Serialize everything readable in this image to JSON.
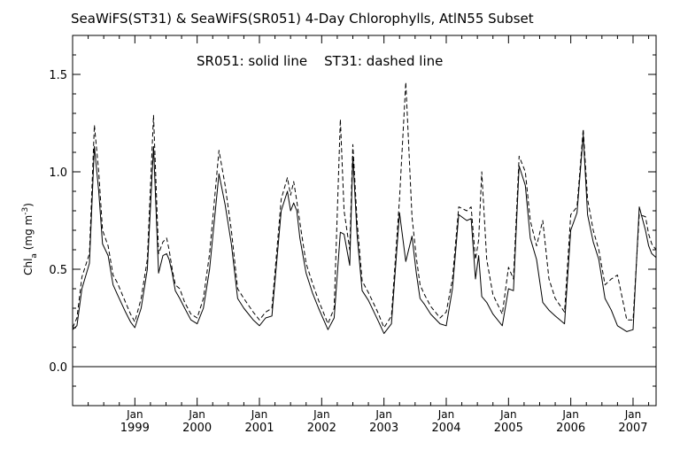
{
  "chart_data": {
    "type": "line",
    "title": "SeaWiFS(ST31) & SeaWiFS(SR051) 4-Day Chlorophylls, AtlN55 Subset",
    "annotation": "SR051: solid line    ST31: dashed line",
    "ylabel_main": "Chl",
    "ylabel_sub": "a",
    "ylabel_unit_pre": " (mg m",
    "ylabel_unit_sup": "-3",
    "ylabel_unit_post": ")",
    "xlim": [
      1998.0,
      2007.37
    ],
    "ylim": [
      -0.2,
      1.7
    ],
    "y_ticks": [
      0.0,
      0.5,
      1.0,
      1.5
    ],
    "y_tick_labels": [
      "0.0",
      "0.5",
      "1.0",
      "1.5"
    ],
    "reference_line": 0.0,
    "x_ticks": [
      {
        "value": 1999.0,
        "month": "Jan",
        "year": "1999"
      },
      {
        "value": 2000.0,
        "month": "Jan",
        "year": "2000"
      },
      {
        "value": 2001.0,
        "month": "Jan",
        "year": "2001"
      },
      {
        "value": 2002.0,
        "month": "Jan",
        "year": "2002"
      },
      {
        "value": 2003.0,
        "month": "Jan",
        "year": "2003"
      },
      {
        "value": 2004.0,
        "month": "Jan",
        "year": "2004"
      },
      {
        "value": 2005.0,
        "month": "Jan",
        "year": "2005"
      },
      {
        "value": 2006.0,
        "month": "Jan",
        "year": "2006"
      },
      {
        "value": 2007.0,
        "month": "Jan",
        "year": "2007"
      }
    ],
    "series": [
      {
        "name": "SR051",
        "style": "solid",
        "x": [
          1998.0,
          1998.07,
          1998.15,
          1998.27,
          1998.35,
          1998.42,
          1998.48,
          1998.57,
          1998.65,
          1998.72,
          1998.85,
          1998.93,
          1999.0,
          1999.1,
          1999.2,
          1999.3,
          1999.38,
          1999.45,
          1999.51,
          1999.55,
          1999.6,
          1999.65,
          1999.72,
          1999.8,
          1999.9,
          2000.0,
          2000.1,
          2000.2,
          2000.35,
          2000.45,
          2000.55,
          2000.65,
          2000.75,
          2000.9,
          2001.0,
          2001.1,
          2001.2,
          2001.35,
          2001.45,
          2001.5,
          2001.55,
          2001.6,
          2001.65,
          2001.75,
          2001.85,
          2001.95,
          2002.1,
          2002.2,
          2002.3,
          2002.36,
          2002.45,
          2002.5,
          2002.57,
          2002.65,
          2002.75,
          2002.9,
          2003.0,
          2003.12,
          2003.25,
          2003.35,
          2003.45,
          2003.52,
          2003.58,
          2003.65,
          2003.75,
          2003.9,
          2004.0,
          2004.1,
          2004.2,
          2004.33,
          2004.4,
          2004.47,
          2004.52,
          2004.57,
          2004.65,
          2004.75,
          2004.9,
          2005.0,
          2005.08,
          2005.17,
          2005.27,
          2005.35,
          2005.45,
          2005.55,
          2005.65,
          2005.75,
          2005.9,
          2006.0,
          2006.1,
          2006.2,
          2006.27,
          2006.36,
          2006.45,
          2006.55,
          2006.65,
          2006.75,
          2006.9,
          2007.0,
          2007.1,
          2007.2,
          2007.25,
          2007.3,
          2007.37
        ],
        "y": [
          0.19,
          0.21,
          0.4,
          0.53,
          1.13,
          0.9,
          0.63,
          0.57,
          0.42,
          0.37,
          0.28,
          0.23,
          0.2,
          0.3,
          0.5,
          1.13,
          0.48,
          0.57,
          0.58,
          0.55,
          0.48,
          0.39,
          0.35,
          0.3,
          0.24,
          0.22,
          0.3,
          0.5,
          0.99,
          0.83,
          0.63,
          0.35,
          0.3,
          0.24,
          0.21,
          0.25,
          0.26,
          0.8,
          0.9,
          0.8,
          0.84,
          0.8,
          0.66,
          0.48,
          0.38,
          0.3,
          0.19,
          0.25,
          0.69,
          0.68,
          0.52,
          1.08,
          0.67,
          0.39,
          0.34,
          0.24,
          0.17,
          0.22,
          0.79,
          0.54,
          0.67,
          0.48,
          0.35,
          0.32,
          0.27,
          0.22,
          0.21,
          0.4,
          0.78,
          0.75,
          0.76,
          0.45,
          0.57,
          0.36,
          0.33,
          0.27,
          0.21,
          0.4,
          0.39,
          1.03,
          0.93,
          0.66,
          0.55,
          0.33,
          0.29,
          0.26,
          0.22,
          0.7,
          0.79,
          1.19,
          0.78,
          0.64,
          0.55,
          0.35,
          0.29,
          0.21,
          0.18,
          0.19,
          0.82,
          0.7,
          0.62,
          0.58,
          0.56
        ]
      },
      {
        "name": "ST31",
        "style": "dashed",
        "x": [
          1998.0,
          1998.07,
          1998.15,
          1998.27,
          1998.35,
          1998.42,
          1998.48,
          1998.57,
          1998.65,
          1998.72,
          1998.85,
          1998.93,
          1999.0,
          1999.1,
          1999.2,
          1999.3,
          1999.38,
          1999.45,
          1999.51,
          1999.55,
          1999.6,
          1999.65,
          1999.72,
          1999.8,
          1999.9,
          2000.0,
          2000.1,
          2000.2,
          2000.35,
          2000.45,
          2000.55,
          2000.65,
          2000.75,
          2000.9,
          2001.0,
          2001.1,
          2001.2,
          2001.35,
          2001.45,
          2001.5,
          2001.55,
          2001.6,
          2001.65,
          2001.75,
          2001.85,
          2001.95,
          2002.1,
          2002.2,
          2002.3,
          2002.36,
          2002.45,
          2002.5,
          2002.57,
          2002.65,
          2002.75,
          2002.9,
          2003.0,
          2003.12,
          2003.25,
          2003.35,
          2003.45,
          2003.52,
          2003.58,
          2003.65,
          2003.75,
          2003.9,
          2004.0,
          2004.1,
          2004.2,
          2004.33,
          2004.4,
          2004.47,
          2004.52,
          2004.57,
          2004.65,
          2004.75,
          2004.9,
          2005.0,
          2005.08,
          2005.17,
          2005.27,
          2005.35,
          2005.45,
          2005.55,
          2005.65,
          2005.75,
          2005.9,
          2006.0,
          2006.1,
          2006.2,
          2006.27,
          2006.36,
          2006.45,
          2006.55,
          2006.65,
          2006.75,
          2006.9,
          2007.0,
          2007.1,
          2007.2,
          2007.25,
          2007.3,
          2007.37
        ],
        "y": [
          0.2,
          0.25,
          0.46,
          0.58,
          1.24,
          1.0,
          0.7,
          0.62,
          0.47,
          0.43,
          0.33,
          0.27,
          0.23,
          0.35,
          0.55,
          1.29,
          0.58,
          0.64,
          0.66,
          0.6,
          0.5,
          0.42,
          0.4,
          0.33,
          0.27,
          0.25,
          0.35,
          0.58,
          1.11,
          0.93,
          0.7,
          0.4,
          0.35,
          0.28,
          0.24,
          0.28,
          0.3,
          0.86,
          0.97,
          0.88,
          0.95,
          0.85,
          0.74,
          0.53,
          0.43,
          0.34,
          0.22,
          0.3,
          1.27,
          0.8,
          0.6,
          1.14,
          0.74,
          0.44,
          0.38,
          0.28,
          0.2,
          0.26,
          0.86,
          1.46,
          0.77,
          0.56,
          0.42,
          0.37,
          0.31,
          0.25,
          0.28,
          0.45,
          0.82,
          0.8,
          0.82,
          0.55,
          0.65,
          1.0,
          0.55,
          0.37,
          0.27,
          0.51,
          0.45,
          1.08,
          1.0,
          0.75,
          0.62,
          0.75,
          0.45,
          0.35,
          0.28,
          0.78,
          0.82,
          1.22,
          0.86,
          0.7,
          0.6,
          0.42,
          0.45,
          0.47,
          0.24,
          0.24,
          0.78,
          0.77,
          0.68,
          0.63,
          0.6
        ]
      }
    ]
  }
}
